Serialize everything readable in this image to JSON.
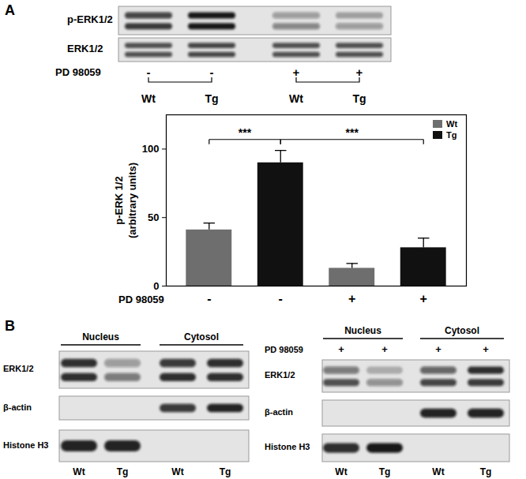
{
  "panel_labels": [
    "A",
    "B"
  ],
  "chart_data": {
    "type": "bar",
    "categories": [
      "-",
      "-",
      "+",
      "+"
    ],
    "xlabel": "PD 98059",
    "ylabel": [
      "p-ERK 1/2",
      "(arbitrary units)"
    ],
    "series": [
      {
        "name": "Wt",
        "color": "#6e6e6e",
        "values": [
          41,
          null,
          13,
          null
        ],
        "errors": [
          5,
          null,
          3.5,
          null
        ]
      },
      {
        "name": "Tg",
        "color": "#111111",
        "values": [
          null,
          90,
          null,
          28
        ],
        "errors": [
          null,
          9,
          null,
          7
        ]
      }
    ],
    "ylim": [
      0,
      125
    ],
    "yticks": [
      0,
      50,
      100
    ],
    "legend": "top-right",
    "annotations": [
      {
        "text": "***",
        "from": 0,
        "to": 1,
        "y": 107
      },
      {
        "text": "***",
        "from": 1,
        "to": 3,
        "y": 107
      }
    ]
  },
  "blots": [
    {
      "rows": [
        {
          "label": "p-ERK1/2",
          "bands": [
            [
              0.75,
              0.95,
              0.35,
              0.3
            ],
            [
              0.8,
              0.95,
              0.45,
              0.35
            ]
          ]
        },
        {
          "label": "ERK1/2",
          "bands": [
            [
              0.7,
              0.75,
              0.7,
              0.7
            ],
            [
              0.7,
              0.75,
              0.7,
              0.7
            ]
          ]
        }
      ],
      "treatment": {
        "label": "PD 98059",
        "values": [
          "-",
          "-",
          "+",
          "+"
        ]
      },
      "lanes": [
        "Wt",
        "Tg",
        "Wt",
        "Tg"
      ]
    },
    {
      "groups": [
        {
          "label": "Nucleus",
          "lanes": [
            0,
            1
          ]
        },
        {
          "label": "Cytosol",
          "lanes": [
            2,
            3
          ]
        }
      ],
      "rows": [
        {
          "label": "ERK1/2",
          "bands": [
            [
              0.85,
              0.35,
              0.8,
              0.85
            ],
            [
              0.85,
              0.5,
              0.85,
              0.85
            ]
          ]
        },
        {
          "label": "β-actin",
          "bands": [
            [
              0,
              0,
              0.8,
              0.9
            ]
          ]
        },
        {
          "label": "Histone H3",
          "bands": [
            [
              0.9,
              0.9,
              0,
              0
            ]
          ]
        }
      ],
      "lanes": [
        "Wt",
        "Tg",
        "Wt",
        "Tg"
      ]
    },
    {
      "groups": [
        {
          "label": "Nucleus",
          "lanes": [
            0,
            1
          ]
        },
        {
          "label": "Cytosol",
          "lanes": [
            2,
            3
          ]
        }
      ],
      "treatment": {
        "label": "PD 98059",
        "values": [
          "+",
          "+",
          "+",
          "+"
        ]
      },
      "rows": [
        {
          "label": "ERK1/2",
          "bands": [
            [
              0.5,
              0.25,
              0.6,
              0.85
            ],
            [
              0.7,
              0.4,
              0.75,
              0.8
            ]
          ]
        },
        {
          "label": "β-actin",
          "bands": [
            [
              0,
              0,
              0.9,
              0.9
            ]
          ]
        },
        {
          "label": "Histone H3",
          "bands": [
            [
              0.85,
              0.95,
              0,
              0
            ]
          ]
        }
      ],
      "lanes": [
        "Wt",
        "Tg",
        "Wt",
        "Tg"
      ]
    }
  ]
}
